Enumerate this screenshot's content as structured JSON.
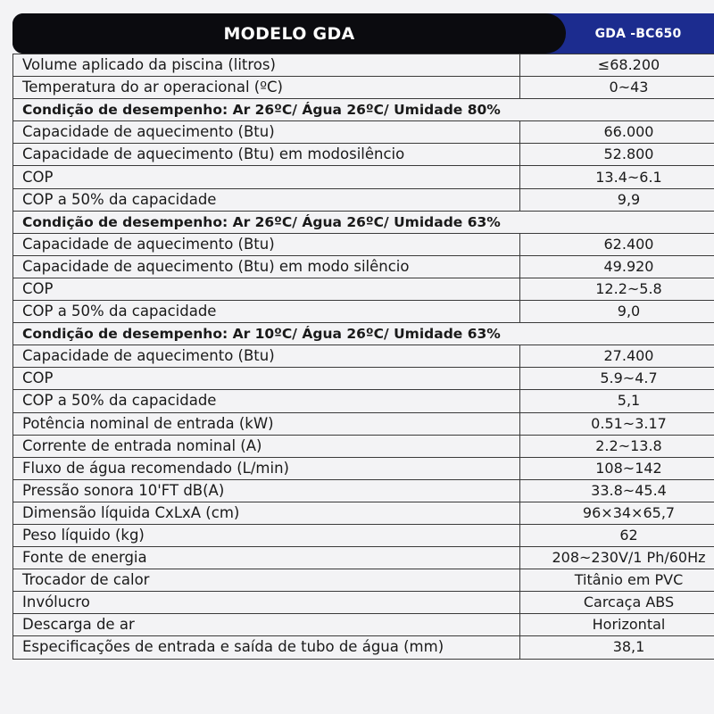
{
  "header": {
    "model_label": "MODELO GDA",
    "model_code": "GDA -BC650"
  },
  "rows": [
    {
      "type": "spec",
      "label": "Volume aplicado da piscina (litros)",
      "value": "≤68.200"
    },
    {
      "type": "spec",
      "label": "Temperatura do ar operacional (ºC)",
      "value": "0~43"
    },
    {
      "type": "section",
      "label": "Condição de desempenho: Ar 26ºC/ Água 26ºC/ Umidade 80%",
      "value": ""
    },
    {
      "type": "spec",
      "label": "Capacidade de aquecimento (Btu)",
      "value": "66.000"
    },
    {
      "type": "spec",
      "label": "Capacidade de aquecimento (Btu) em modosilêncio",
      "value": "52.800"
    },
    {
      "type": "spec",
      "label": "COP",
      "value": "13.4~6.1"
    },
    {
      "type": "spec",
      "label": "COP a 50% da capacidade",
      "value": "9,9"
    },
    {
      "type": "section",
      "label": "Condição de desempenho: Ar 26ºC/ Água 26ºC/ Umidade 63%",
      "value": ""
    },
    {
      "type": "spec",
      "label": "Capacidade de aquecimento (Btu)",
      "value": "62.400"
    },
    {
      "type": "spec",
      "label": "Capacidade de aquecimento (Btu) em modo silêncio",
      "value": "49.920"
    },
    {
      "type": "spec",
      "label": "COP",
      "value": "12.2~5.8"
    },
    {
      "type": "spec",
      "label": "COP a 50% da capacidade",
      "value": "9,0"
    },
    {
      "type": "section",
      "label": "Condição de desempenho: Ar 10ºC/ Água 26ºC/ Umidade 63%",
      "value": ""
    },
    {
      "type": "spec",
      "label": "Capacidade de aquecimento (Btu)",
      "value": "27.400"
    },
    {
      "type": "spec",
      "label": "COP",
      "value": "5.9~4.7"
    },
    {
      "type": "spec",
      "label": "COP a 50% da capacidade",
      "value": "5,1"
    },
    {
      "type": "spec",
      "label": "Potência nominal de entrada (kW)",
      "value": "0.51~3.17"
    },
    {
      "type": "spec",
      "label": "Corrente de entrada nominal (A)",
      "value": "2.2~13.8"
    },
    {
      "type": "spec",
      "label": "Fluxo de água recomendado (L/min)",
      "value": "108~142"
    },
    {
      "type": "spec",
      "label": "Pressão sonora 10'FT dB(A)",
      "value": "33.8~45.4"
    },
    {
      "type": "spec",
      "label": "Dimensão líquida CxLxA (cm)",
      "value": "96×34×65,7"
    },
    {
      "type": "spec",
      "label": "Peso líquido (kg)",
      "value": "62"
    },
    {
      "type": "spec",
      "label": "Fonte de energia",
      "value": "208~230V/1 Ph/60Hz"
    },
    {
      "type": "spec",
      "label": "Trocador de calor",
      "value": "Titânio em PVC"
    },
    {
      "type": "spec",
      "label": "Invólucro",
      "value": "Carcaça ABS"
    },
    {
      "type": "spec",
      "label": "Descarga de ar",
      "value": "Horizontal"
    },
    {
      "type": "spec",
      "label": "Especificações de entrada e saída de tubo de água (mm)",
      "value": "38,1"
    }
  ]
}
